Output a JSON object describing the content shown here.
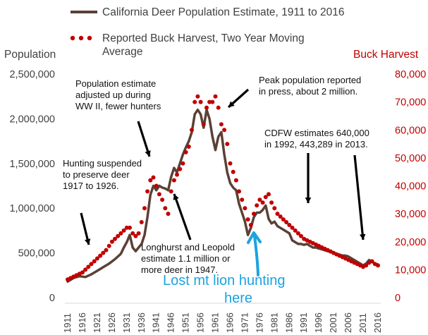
{
  "chart_data": {
    "type": "line",
    "legend": [
      {
        "label": "California Deer Population Estimate, 1911 to 2016",
        "color": "#5a4136",
        "style": "solid"
      },
      {
        "label_lines": [
          "Reported Buck Harvest, Two Year Moving",
          "Average"
        ],
        "color": "#c00000",
        "style": "dotted"
      }
    ],
    "y_left": {
      "title": "Population",
      "min": 0,
      "max": 2500000,
      "ticks": [
        "0",
        "500,000",
        "1,000,000",
        "1,500,000",
        "2,000,000",
        "2,500,000"
      ]
    },
    "y_right": {
      "title": "Buck Harvest",
      "min": 0,
      "max": 80000,
      "ticks": [
        "0",
        "10,000",
        "20,000",
        "30,000",
        "40,000",
        "50,000",
        "60,000",
        "70,000",
        "80,000"
      ]
    },
    "x_ticks": [
      "1911",
      "1916",
      "1921",
      "1926",
      "1931",
      "1936",
      "1941",
      "1946",
      "1951",
      "1956",
      "1961",
      "1966",
      "1971",
      "1976",
      "1981",
      "1986",
      "1991",
      "1996",
      "2001",
      "2006",
      "2011",
      "2016"
    ],
    "series": [
      {
        "name": "California Deer Population Estimate, 1911 to 2016",
        "axis": "left",
        "style": "solid",
        "color": "#5a4136",
        "points": [
          [
            1911,
            180000
          ],
          [
            1913,
            220000
          ],
          [
            1915,
            240000
          ],
          [
            1917,
            230000
          ],
          [
            1919,
            260000
          ],
          [
            1921,
            300000
          ],
          [
            1923,
            340000
          ],
          [
            1925,
            380000
          ],
          [
            1927,
            430000
          ],
          [
            1929,
            490000
          ],
          [
            1930,
            560000
          ],
          [
            1931,
            620000
          ],
          [
            1932,
            700000
          ],
          [
            1933,
            560000
          ],
          [
            1934,
            520000
          ],
          [
            1935,
            560000
          ],
          [
            1936,
            600000
          ],
          [
            1937,
            700000
          ],
          [
            1938,
            900000
          ],
          [
            1939,
            1150000
          ],
          [
            1940,
            1250000
          ],
          [
            1941,
            1200000
          ],
          [
            1942,
            1250000
          ],
          [
            1943,
            1230000
          ],
          [
            1944,
            1220000
          ],
          [
            1945,
            1200000
          ],
          [
            1946,
            1350000
          ],
          [
            1947,
            1450000
          ],
          [
            1948,
            1400000
          ],
          [
            1949,
            1500000
          ],
          [
            1950,
            1600000
          ],
          [
            1951,
            1680000
          ],
          [
            1952,
            1750000
          ],
          [
            1953,
            1850000
          ],
          [
            1954,
            2050000
          ],
          [
            1955,
            2100000
          ],
          [
            1956,
            2050000
          ],
          [
            1957,
            1900000
          ],
          [
            1958,
            2100000
          ],
          [
            1959,
            2000000
          ],
          [
            1960,
            1800000
          ],
          [
            1961,
            1650000
          ],
          [
            1962,
            1800000
          ],
          [
            1963,
            1850000
          ],
          [
            1964,
            1600000
          ],
          [
            1965,
            1400000
          ],
          [
            1966,
            1280000
          ],
          [
            1967,
            1230000
          ],
          [
            1968,
            1200000
          ],
          [
            1969,
            1050000
          ],
          [
            1970,
            950000
          ],
          [
            1971,
            850000
          ],
          [
            1972,
            700000
          ],
          [
            1973,
            780000
          ],
          [
            1974,
            900000
          ],
          [
            1975,
            950000
          ],
          [
            1976,
            950000
          ],
          [
            1977,
            980000
          ],
          [
            1978,
            1030000
          ],
          [
            1979,
            880000
          ],
          [
            1980,
            830000
          ],
          [
            1981,
            850000
          ],
          [
            1982,
            800000
          ],
          [
            1983,
            780000
          ],
          [
            1984,
            760000
          ],
          [
            1985,
            740000
          ],
          [
            1986,
            720000
          ],
          [
            1987,
            640000
          ],
          [
            1988,
            620000
          ],
          [
            1989,
            600000
          ],
          [
            1990,
            600000
          ],
          [
            1991,
            590000
          ],
          [
            1992,
            600000
          ],
          [
            1993,
            580000
          ],
          [
            1994,
            560000
          ],
          [
            1995,
            560000
          ],
          [
            1996,
            550000
          ],
          [
            1997,
            540000
          ],
          [
            1998,
            530000
          ],
          [
            1999,
            520000
          ],
          [
            2000,
            510000
          ],
          [
            2001,
            500000
          ],
          [
            2002,
            490000
          ],
          [
            2003,
            480000
          ],
          [
            2004,
            470000
          ],
          [
            2005,
            470000
          ],
          [
            2006,
            460000
          ],
          [
            2007,
            440000
          ],
          [
            2008,
            420000
          ],
          [
            2009,
            400000
          ],
          [
            2010,
            380000
          ],
          [
            2011,
            360000
          ],
          [
            2012,
            380000
          ],
          [
            2013,
            420000
          ],
          [
            2014,
            400000
          ],
          [
            2015,
            380000
          ],
          [
            2016,
            370000
          ]
        ]
      },
      {
        "name": "Reported Buck Harvest, Two Year Moving Average",
        "axis": "right",
        "style": "dotted",
        "color": "#c00000",
        "points": [
          [
            1911,
            6500
          ],
          [
            1912,
            7000
          ],
          [
            1913,
            7500
          ],
          [
            1914,
            8000
          ],
          [
            1915,
            8500
          ],
          [
            1916,
            9000
          ],
          [
            1917,
            10000
          ],
          [
            1918,
            11000
          ],
          [
            1919,
            12000
          ],
          [
            1920,
            13000
          ],
          [
            1921,
            14000
          ],
          [
            1922,
            15000
          ],
          [
            1923,
            16000
          ],
          [
            1924,
            17000
          ],
          [
            1925,
            18500
          ],
          [
            1926,
            20000
          ],
          [
            1927,
            21000
          ],
          [
            1928,
            22000
          ],
          [
            1929,
            23000
          ],
          [
            1930,
            24000
          ],
          [
            1931,
            25000
          ],
          [
            1932,
            25000
          ],
          [
            1933,
            23000
          ],
          [
            1934,
            22000
          ],
          [
            1935,
            23000
          ],
          [
            1936,
            27000
          ],
          [
            1937,
            32000
          ],
          [
            1938,
            38000
          ],
          [
            1939,
            42000
          ],
          [
            1940,
            43000
          ],
          [
            1941,
            40000
          ],
          [
            1942,
            37000
          ],
          [
            1943,
            35000
          ],
          [
            1944,
            32000
          ],
          [
            1945,
            30000
          ],
          [
            1946,
            38000
          ],
          [
            1947,
            42000
          ],
          [
            1948,
            44000
          ],
          [
            1949,
            46000
          ],
          [
            1950,
            48000
          ],
          [
            1951,
            52000
          ],
          [
            1952,
            54000
          ],
          [
            1953,
            60000
          ],
          [
            1954,
            70000
          ],
          [
            1955,
            72000
          ],
          [
            1956,
            70000
          ],
          [
            1957,
            62000
          ],
          [
            1958,
            68000
          ],
          [
            1959,
            70000
          ],
          [
            1960,
            70000
          ],
          [
            1961,
            72000
          ],
          [
            1962,
            68000
          ],
          [
            1963,
            62000
          ],
          [
            1964,
            60000
          ],
          [
            1965,
            55000
          ],
          [
            1966,
            48000
          ],
          [
            1967,
            45000
          ],
          [
            1968,
            42000
          ],
          [
            1969,
            38000
          ],
          [
            1970,
            35000
          ],
          [
            1971,
            32000
          ],
          [
            1972,
            28000
          ],
          [
            1973,
            26000
          ],
          [
            1974,
            30000
          ],
          [
            1975,
            33000
          ],
          [
            1976,
            35000
          ],
          [
            1977,
            34000
          ],
          [
            1978,
            36000
          ],
          [
            1979,
            37000
          ],
          [
            1980,
            34000
          ],
          [
            1981,
            32000
          ],
          [
            1982,
            30000
          ],
          [
            1983,
            29000
          ],
          [
            1984,
            28000
          ],
          [
            1985,
            27000
          ],
          [
            1986,
            26000
          ],
          [
            1987,
            25000
          ],
          [
            1988,
            24000
          ],
          [
            1989,
            23000
          ],
          [
            1990,
            22000
          ],
          [
            1991,
            21000
          ],
          [
            1992,
            20500
          ],
          [
            1993,
            20000
          ],
          [
            1994,
            19500
          ],
          [
            1995,
            19000
          ],
          [
            1996,
            18500
          ],
          [
            1997,
            18000
          ],
          [
            1998,
            17500
          ],
          [
            1999,
            17000
          ],
          [
            2000,
            16500
          ],
          [
            2001,
            16000
          ],
          [
            2002,
            15500
          ],
          [
            2003,
            15000
          ],
          [
            2004,
            14500
          ],
          [
            2005,
            14000
          ],
          [
            2006,
            13500
          ],
          [
            2007,
            13000
          ],
          [
            2008,
            12500
          ],
          [
            2009,
            12000
          ],
          [
            2010,
            11500
          ],
          [
            2011,
            11000
          ],
          [
            2012,
            11500
          ],
          [
            2013,
            12500
          ],
          [
            2014,
            13000
          ],
          [
            2015,
            12000
          ],
          [
            2016,
            11500
          ]
        ]
      }
    ],
    "annotations": [
      {
        "lines": [
          "Population estimate",
          "adjusted up during",
          "WW II, fewer hunters"
        ]
      },
      {
        "lines": [
          "Peak population reported",
          "in press, about 2 million."
        ]
      },
      {
        "lines": [
          "CDFW estimates 640,000",
          "in 1992, 443,289 in 2013."
        ]
      },
      {
        "lines": [
          "Hunting suspended",
          "to preserve deer",
          "1917 to 1926."
        ]
      },
      {
        "lines": [
          "Longhurst and Leopold",
          "estimate 1.1 million or",
          "more deer in 1947."
        ]
      },
      {
        "lines": [
          "Lost mt lion hunting",
          "here"
        ],
        "color": "#1ba3e0"
      }
    ]
  }
}
